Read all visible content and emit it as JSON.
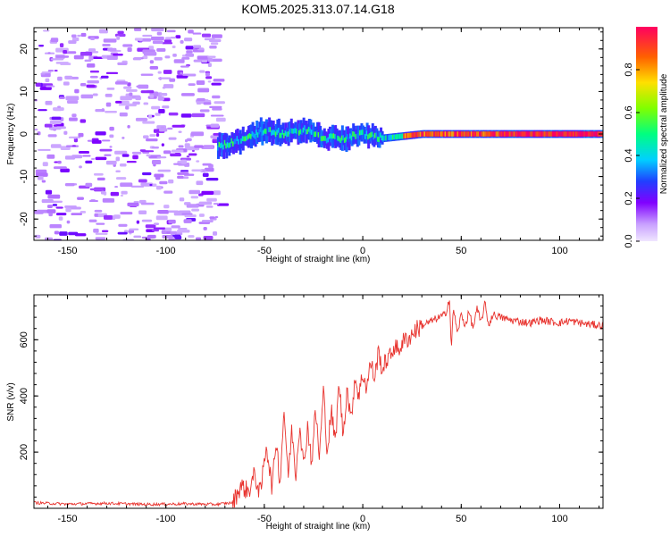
{
  "title": "KOM5.2025.313.07.14.G18",
  "colors": {
    "signal": "#e8332e",
    "axis": "#000000",
    "background": "#ffffff"
  },
  "chart_data": [
    {
      "type": "heatmap",
      "title": "KOM5.2025.313.07.14.G18",
      "xlabel": "Height of straight line (km)",
      "ylabel": "Frequency (Hz)",
      "xlim": [
        -167,
        122
      ],
      "ylim": [
        -25,
        25
      ],
      "xticks": [
        -150,
        -100,
        -50,
        0,
        50,
        100
      ],
      "yticks": [
        -20,
        -10,
        0,
        10,
        20
      ],
      "colorbar": {
        "label": "Normalized spectral amplitude",
        "range": [
          0,
          1
        ],
        "ticks": [
          "0.0",
          "0.2",
          "0.4",
          "0.6",
          "0.8"
        ],
        "tick_values": [
          0.0,
          0.2,
          0.4,
          0.6,
          0.8
        ]
      },
      "description_of_signal": {
        "noise_region_x": [
          -167,
          -74
        ],
        "tone_start_x": -74,
        "tone_frequency_track": [
          {
            "x": -74,
            "f": -3
          },
          {
            "x": -60,
            "f": -1
          },
          {
            "x": -50,
            "f": 1
          },
          {
            "x": -40,
            "f": 0
          },
          {
            "x": -30,
            "f": 1
          },
          {
            "x": -20,
            "f": -1
          },
          {
            "x": -10,
            "f": -1
          },
          {
            "x": 0,
            "f": 0
          },
          {
            "x": 10,
            "f": -1
          },
          {
            "x": 30,
            "f": 0
          },
          {
            "x": 60,
            "f": 0
          },
          {
            "x": 122,
            "f": 0
          }
        ]
      }
    },
    {
      "type": "line",
      "xlabel": "Height of straight line (km)",
      "ylabel": "SNR (v/v)",
      "xlim": [
        -167,
        122
      ],
      "ylim": [
        0,
        760
      ],
      "xticks": [
        -150,
        -100,
        -50,
        0,
        50,
        100
      ],
      "yticks": [
        200,
        400,
        600
      ],
      "series": [
        {
          "name": "SNR",
          "x": [
            -167,
            -150,
            -130,
            -110,
            -90,
            -75,
            -66,
            -62,
            -58,
            -55,
            -52,
            -49,
            -46,
            -44,
            -42,
            -40,
            -38,
            -36,
            -34,
            -32,
            -30,
            -28,
            -26,
            -24,
            -22,
            -20,
            -18,
            -16,
            -14,
            -12,
            -10,
            -8,
            -6,
            -4,
            -2,
            0,
            2,
            4,
            6,
            8,
            10,
            12,
            14,
            16,
            18,
            20,
            22,
            24,
            26,
            28,
            30,
            33,
            36,
            39,
            42,
            44,
            45,
            46,
            48,
            50,
            52,
            54,
            56,
            58,
            60,
            62,
            64,
            66,
            70,
            75,
            80,
            85,
            90,
            95,
            100,
            105,
            110,
            115,
            122
          ],
          "y": [
            20,
            15,
            18,
            14,
            16,
            14,
            20,
            80,
            60,
            120,
            50,
            230,
            70,
            250,
            90,
            360,
            110,
            280,
            120,
            310,
            140,
            300,
            160,
            350,
            180,
            420,
            200,
            350,
            230,
            450,
            260,
            430,
            310,
            470,
            400,
            480,
            430,
            520,
            460,
            560,
            490,
            530,
            540,
            580,
            560,
            590,
            600,
            610,
            630,
            640,
            650,
            660,
            670,
            680,
            690,
            750,
            560,
            720,
            620,
            690,
            650,
            700,
            640,
            710,
            660,
            730,
            650,
            690,
            680,
            670,
            665,
            660,
            670,
            665,
            660,
            668,
            660,
            655,
            650
          ]
        }
      ]
    }
  ]
}
